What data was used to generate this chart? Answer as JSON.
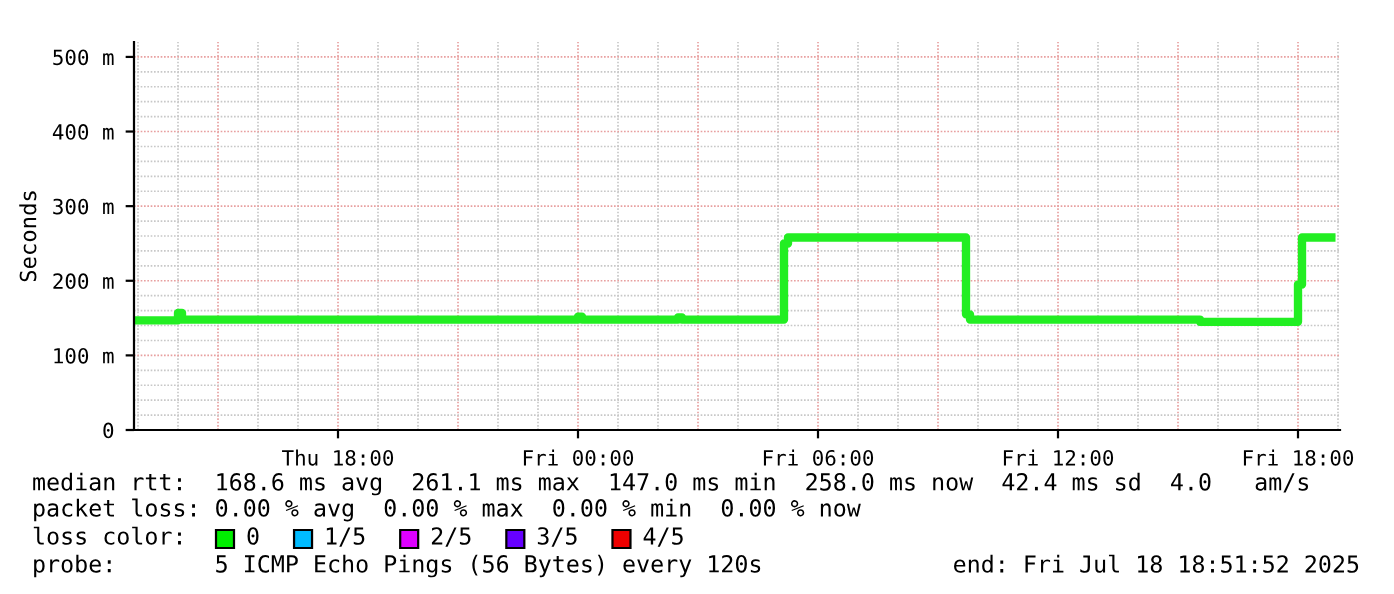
{
  "chart_data": {
    "type": "step",
    "ylabel": "Seconds",
    "x": [
      "2025-07-17T12:54",
      "2025-07-17T14:00",
      "2025-07-17T14:06",
      "2025-07-18T00:00",
      "2025-07-18T00:06",
      "2025-07-18T02:30",
      "2025-07-18T02:36",
      "2025-07-18T05:09",
      "2025-07-18T05:15",
      "2025-07-18T09:42",
      "2025-07-18T09:48",
      "2025-07-18T15:33",
      "2025-07-18T18:00",
      "2025-07-18T18:06",
      "2025-07-18T18:50"
    ],
    "series": [
      {
        "color": "#22ee22",
        "values": [
          147,
          157,
          148,
          152,
          148,
          151,
          148,
          250,
          258,
          155,
          148,
          145,
          195,
          258,
          258
        ]
      }
    ],
    "xlim": [
      "2025-07-17T12:54",
      "2025-07-18T19:03"
    ],
    "xticks": [
      {
        "value": "2025-07-17T18:00",
        "label": "Thu 18:00"
      },
      {
        "value": "2025-07-18T00:00",
        "label": "Fri 00:00"
      },
      {
        "value": "2025-07-18T06:00",
        "label": "Fri 06:00"
      },
      {
        "value": "2025-07-18T12:00",
        "label": "Fri 12:00"
      },
      {
        "value": "2025-07-18T18:00",
        "label": "Fri 18:00"
      }
    ],
    "ylim": [
      0,
      520
    ],
    "yticks": [
      0,
      {
        "value": 100,
        "label": "100 m"
      },
      {
        "value": 200,
        "label": "200 m"
      },
      {
        "value": 300,
        "label": "300 m"
      },
      {
        "value": 400,
        "label": "400 m"
      },
      {
        "value": 500,
        "label": "500 m"
      }
    ],
    "grid": true,
    "annotations": [
      "median rtt:  168.6 ms avg  261.1 ms max  147.0 ms min  258.0 ms now  42.4 ms sd  4.0   am/s",
      "packet loss: 0.00 % avg  0.00 % max  0.00 % min  0.00 % now",
      "loss color:",
      "0",
      "1/5",
      "2/5",
      "3/5",
      "4/5",
      "probe:       5 ICMP Echo Pings (56 Bytes) every 120s",
      "end: Fri Jul 18 18:51:52 2025"
    ]
  }
}
